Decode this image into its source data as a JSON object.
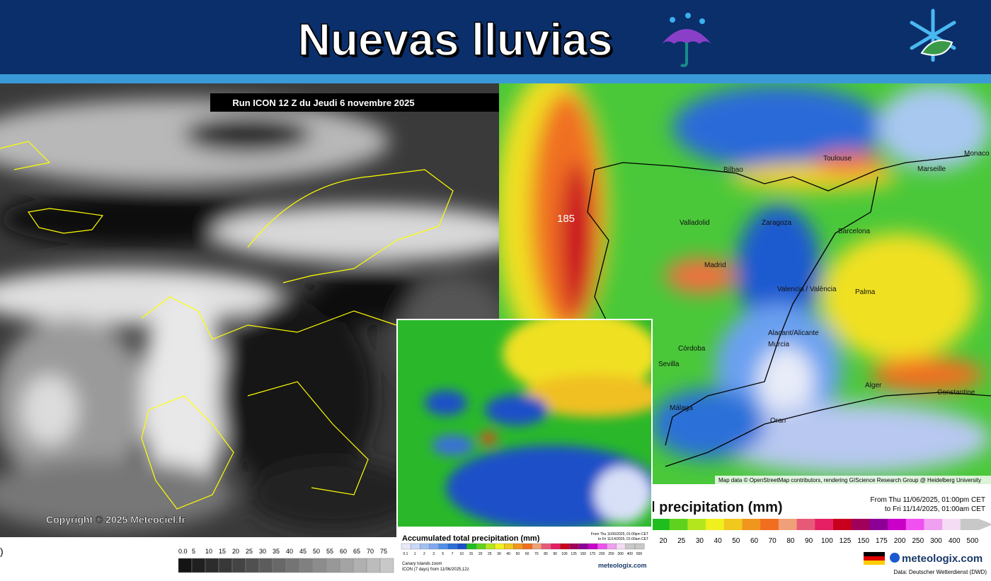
{
  "header": {
    "title": "Nuevas lluvias"
  },
  "left_map": {
    "run": "Run ICON 12 Z du Jeudi 6 novembre 2025",
    "copyright": "Copyright © 2025 Meteociel.fr",
    "legend": [
      "0.0",
      "5",
      "10",
      "15",
      "20",
      "25",
      "30",
      "35",
      "40",
      "45",
      "50",
      "55",
      "60",
      "65",
      "70",
      "75"
    ]
  },
  "right_map": {
    "max_label": "185",
    "cities": [
      "Bilbao",
      "Toulouse",
      "Marseille",
      "Monaco",
      "Valladolid",
      "Zaragoza",
      "Barcelona",
      "Madrid",
      "Valencia / València",
      "Palma",
      "Alacant/Alicante",
      "Murcia",
      "Córdoba",
      "Sevilla",
      "Málaga",
      "Alger",
      "Constantine",
      "Oran"
    ],
    "attribution": "Map data © OpenStreetMap contributors, rendering GIScience Research Group @ Heidelberg University",
    "legend_title": "l precipitation (mm)",
    "period_from": "From Thu 11/06/2025, 01:00pm CET",
    "period_to": "to Fri 11/14/2025, 01:00am CET",
    "legend": [
      "20",
      "25",
      "30",
      "40",
      "50",
      "60",
      "70",
      "80",
      "90",
      "100",
      "125",
      "150",
      "175",
      "200",
      "250",
      "300",
      "400",
      "500"
    ],
    "colors": [
      "#1fbe1f",
      "#5fd21f",
      "#b4e61e",
      "#f0f01e",
      "#f0c81e",
      "#f0961e",
      "#f06e1e",
      "#f0a078",
      "#e65a78",
      "#e61e64",
      "#c8001e",
      "#a0005a",
      "#8c0096",
      "#c800c8",
      "#f050f0",
      "#f0a0f0",
      "#f5dcf5",
      "#c8c8c8"
    ],
    "brand": "meteologix.com",
    "source": "Data: Deutscher Wetterdienst (DWD)"
  },
  "inset": {
    "legend_title": "Accumulated total precipitation (mm)",
    "period_from": "From Thu 11/06/2025, 01:00pm CET",
    "period_to": "to Fri 11/14/2025, 01:00am CET",
    "legend": [
      "0.1",
      "1",
      "2",
      "3",
      "5",
      "7",
      "10",
      "15",
      "20",
      "25",
      "30",
      "40",
      "50",
      "60",
      "70",
      "80",
      "90",
      "100",
      "125",
      "150",
      "175",
      "200",
      "250",
      "300",
      "400",
      "500"
    ],
    "zoom": "Canary Islands zoom",
    "run": "ICON (7 days) from 11/06/2025,12z",
    "brand": "meteologix.com"
  }
}
